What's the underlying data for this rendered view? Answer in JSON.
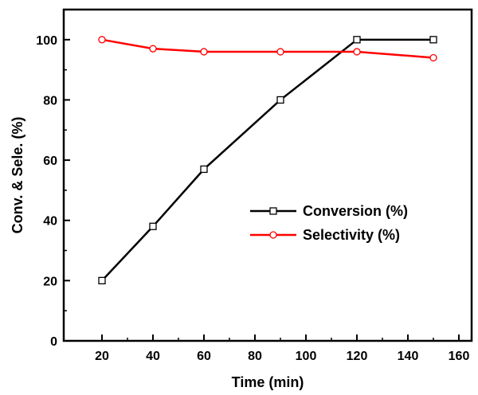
{
  "chart_data": {
    "type": "line",
    "x": [
      20,
      40,
      60,
      90,
      120,
      150
    ],
    "series": [
      {
        "name": "Conversion (%)",
        "values": [
          20,
          38,
          57,
          80,
          100,
          100
        ],
        "color": "#000000",
        "marker": "square"
      },
      {
        "name": "Selectivity (%)",
        "values": [
          100,
          97,
          96,
          96,
          96,
          94
        ],
        "color": "#ff0000",
        "marker": "circle"
      }
    ],
    "xlabel": "Time (min)",
    "ylabel": "Conv. & Sele. (%)",
    "xlim": [
      5,
      165
    ],
    "ylim": [
      0,
      110
    ],
    "xticks": [
      20,
      40,
      60,
      80,
      100,
      120,
      140,
      160
    ],
    "yticks": [
      0,
      20,
      40,
      60,
      80,
      100
    ],
    "grid": false,
    "legend_position": "center-right"
  }
}
